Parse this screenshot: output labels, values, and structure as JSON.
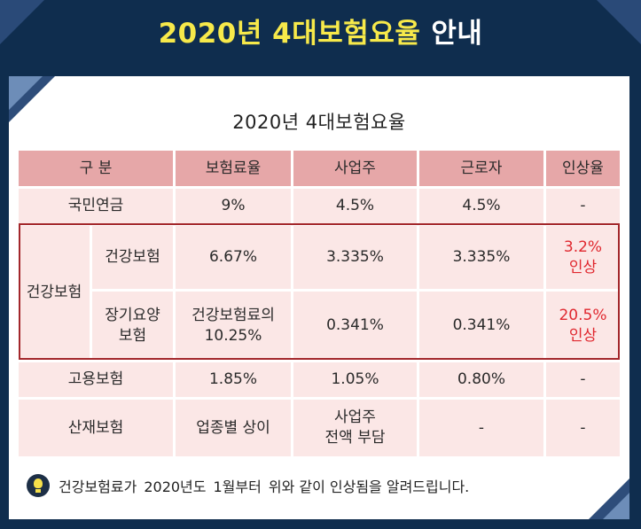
{
  "header": {
    "title_part1": "2020년 4대보험요율",
    "title_part2": "안내"
  },
  "table": {
    "title": "2020년 4대보험요율",
    "columns": [
      "구  분",
      "보험료율",
      "사업주",
      "근로자",
      "인상율"
    ],
    "rows": {
      "pension": {
        "label": "국민연금",
        "rate": "9%",
        "employer": "4.5%",
        "employee": "4.5%",
        "increase": "-"
      },
      "health_group": "건강보험",
      "health": {
        "label": "건강보험",
        "rate": "6.67%",
        "employer": "3.335%",
        "employee": "3.335%",
        "increase_1": "3.2%",
        "increase_2": "인상"
      },
      "ltc": {
        "label_1": "장기요양",
        "label_2": "보험",
        "rate_1": "건강보험료의",
        "rate_2": "10.25%",
        "employer": "0.341%",
        "employee": "0.341%",
        "increase_1": "20.5%",
        "increase_2": "인상"
      },
      "employment": {
        "label": "고용보험",
        "rate": "1.85%",
        "employer": "1.05%",
        "employee": "0.80%",
        "increase": "-"
      },
      "industrial": {
        "label": "산재보험",
        "rate": "업종별 상이",
        "employer_1": "사업주",
        "employer_2": "전액 부담",
        "employee": "-",
        "increase": "-"
      }
    }
  },
  "notice": {
    "p1": "건강보험료가",
    "p2": "2020년도",
    "p3": "1월부터",
    "p4": "위와 같이 인상됨을 알려드립니다."
  }
}
